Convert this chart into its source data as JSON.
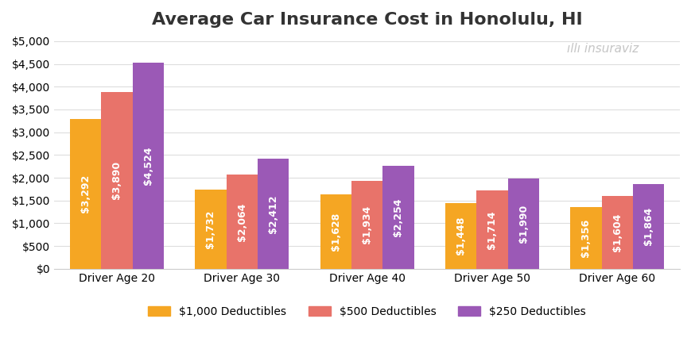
{
  "title": "Average Car Insurance Cost in Honolulu, HI",
  "categories": [
    "Driver Age 20",
    "Driver Age 30",
    "Driver Age 40",
    "Driver Age 50",
    "Driver Age 60"
  ],
  "series": [
    {
      "name": "$1,000 Deductibles",
      "values": [
        3292,
        1732,
        1628,
        1448,
        1356
      ],
      "color": "#F5A623"
    },
    {
      "name": "$500 Deductibles",
      "values": [
        3890,
        2064,
        1934,
        1714,
        1604
      ],
      "color": "#E8736A"
    },
    {
      "name": "$250 Deductibles",
      "values": [
        4524,
        2412,
        2254,
        1990,
        1864
      ],
      "color": "#9B59B6"
    }
  ],
  "ylim": [
    0,
    5000
  ],
  "yticks": [
    0,
    500,
    1000,
    1500,
    2000,
    2500,
    3000,
    3500,
    4000,
    4500,
    5000
  ],
  "ytick_labels": [
    "$0",
    "$500",
    "$1,000",
    "$1,500",
    "$2,000",
    "$2,500",
    "$3,000",
    "$3,500",
    "$4,000",
    "$4,500",
    "$5,000"
  ],
  "background_color": "#FFFFFF",
  "plot_bg_color": "#FFFFFF",
  "grid_color": "#DDDDDD",
  "label_color": "#FFFFFF",
  "bar_label_fontsize": 9,
  "title_fontsize": 16,
  "legend_fontsize": 10,
  "tick_fontsize": 10,
  "bar_width": 0.25,
  "watermark_text": "insuraviz",
  "watermark_color_main": "#AAAAAA",
  "watermark_color_accent": "#F5A623"
}
